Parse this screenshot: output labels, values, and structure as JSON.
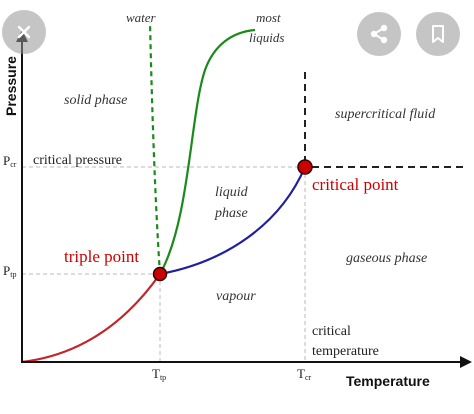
{
  "diagram": {
    "axes": {
      "y_title": "Pressure",
      "x_title": "Temperature",
      "y_ticks": [
        {
          "main": "P",
          "sub": "cr"
        },
        {
          "main": "P",
          "sub": "tp"
        }
      ],
      "x_ticks": [
        {
          "main": "T",
          "sub": "tp"
        },
        {
          "main": "T",
          "sub": "cr"
        }
      ]
    },
    "labels": {
      "water": "water",
      "most_liquids_1": "most",
      "most_liquids_2": "liquids",
      "solid_phase": "solid phase",
      "supercritical_fluid": "supercritical fluid",
      "critical_pressure": "critical pressure",
      "liquid_phase_1": "liquid",
      "liquid_phase_2": "phase",
      "critical_point": "critical point",
      "triple_point": "triple point",
      "gaseous_phase": "gaseous phase",
      "vapour": "vapour",
      "critical_temperature_1": "critical",
      "critical_temperature_2": "temperature"
    },
    "colors": {
      "sublimation_curve": "#c0262a",
      "vaporization_curve": "#1f1fa0",
      "melting_curves": "#1a8a1a",
      "point_fill": "#cc0000",
      "point_stroke": "#300000",
      "label_red": "#cc0000",
      "axis": "#111111",
      "guide": "#bbbbbb"
    }
  },
  "overlay": {
    "close_icon": "close-icon",
    "share_icon": "share-icon",
    "bookmark_icon": "bookmark-icon"
  }
}
